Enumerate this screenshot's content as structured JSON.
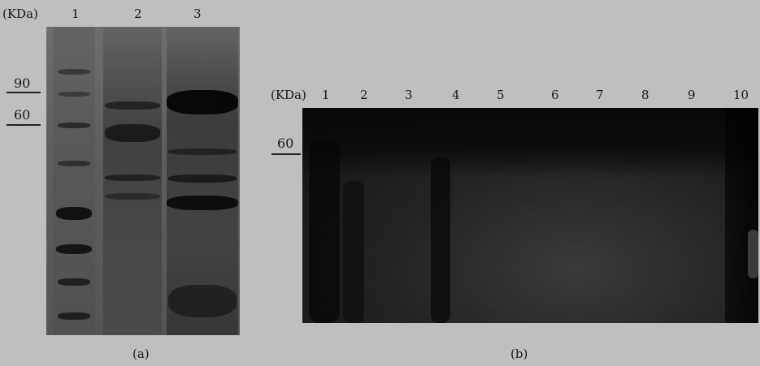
{
  "panel_a": {
    "unit_label": "(KDa)",
    "lanes": [
      "1",
      "2",
      "3"
    ],
    "markers": [
      "90",
      "60"
    ],
    "caption": "(a)"
  },
  "panel_b": {
    "unit_label": "(KDa)",
    "lanes": [
      "1",
      "2",
      "3",
      "4",
      "5",
      "6",
      "7",
      "8",
      "9",
      "10"
    ],
    "markers": [
      "60"
    ],
    "caption": "(b)"
  },
  "colors": {
    "background": "#bfbfbf",
    "gel_a": "#5e5e5e",
    "gel_b": "#1a1a1a"
  }
}
